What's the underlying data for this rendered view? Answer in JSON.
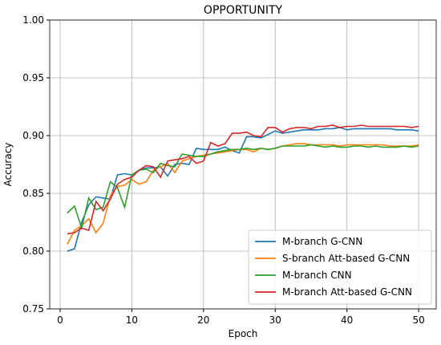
{
  "chart_data": {
    "type": "line",
    "title": "OPPORTUNITY",
    "x_label": "Epoch",
    "y_label": "Accuracy",
    "x": [
      1,
      2,
      3,
      4,
      5,
      6,
      7,
      8,
      9,
      10,
      11,
      12,
      13,
      14,
      15,
      16,
      17,
      18,
      19,
      20,
      21,
      22,
      23,
      24,
      25,
      26,
      27,
      28,
      29,
      30,
      31,
      32,
      33,
      34,
      35,
      36,
      37,
      38,
      39,
      40,
      41,
      42,
      43,
      44,
      45,
      46,
      47,
      48,
      49,
      50
    ],
    "series": [
      {
        "name": "M-branch G-CNN",
        "color": "#1f77b4",
        "values": [
          0.8,
          0.802,
          0.825,
          0.84,
          0.847,
          0.846,
          0.845,
          0.866,
          0.867,
          0.866,
          0.87,
          0.872,
          0.872,
          0.873,
          0.865,
          0.875,
          0.876,
          0.875,
          0.889,
          0.888,
          0.888,
          0.888,
          0.89,
          0.887,
          0.885,
          0.899,
          0.899,
          0.898,
          0.901,
          0.904,
          0.902,
          0.903,
          0.904,
          0.905,
          0.905,
          0.905,
          0.906,
          0.906,
          0.907,
          0.905,
          0.906,
          0.906,
          0.906,
          0.906,
          0.906,
          0.906,
          0.905,
          0.905,
          0.905,
          0.904
        ]
      },
      {
        "name": "S-branch Att-based G-CNN",
        "color": "#ff7f0e",
        "values": [
          0.806,
          0.818,
          0.822,
          0.828,
          0.816,
          0.824,
          0.848,
          0.856,
          0.857,
          0.862,
          0.858,
          0.86,
          0.87,
          0.873,
          0.876,
          0.868,
          0.878,
          0.88,
          0.882,
          0.883,
          0.884,
          0.885,
          0.886,
          0.887,
          0.888,
          0.888,
          0.886,
          0.889,
          0.888,
          0.889,
          0.891,
          0.892,
          0.893,
          0.893,
          0.892,
          0.892,
          0.892,
          0.892,
          0.891,
          0.892,
          0.892,
          0.892,
          0.892,
          0.892,
          0.892,
          0.891,
          0.891,
          0.891,
          0.891,
          0.892
        ]
      },
      {
        "name": "M-branch CNN",
        "color": "#2ca02c",
        "values": [
          0.833,
          0.839,
          0.82,
          0.846,
          0.836,
          0.838,
          0.86,
          0.855,
          0.838,
          0.866,
          0.87,
          0.871,
          0.868,
          0.876,
          0.874,
          0.873,
          0.884,
          0.883,
          0.882,
          0.882,
          0.884,
          0.886,
          0.887,
          0.888,
          0.888,
          0.889,
          0.888,
          0.889,
          0.888,
          0.889,
          0.891,
          0.891,
          0.891,
          0.891,
          0.892,
          0.891,
          0.89,
          0.891,
          0.89,
          0.89,
          0.891,
          0.891,
          0.89,
          0.891,
          0.89,
          0.89,
          0.89,
          0.891,
          0.89,
          0.891
        ]
      },
      {
        "name": "M-branch Att-based G-CNN",
        "color": "#d62728",
        "values": [
          0.815,
          0.816,
          0.82,
          0.818,
          0.843,
          0.835,
          0.845,
          0.858,
          0.862,
          0.864,
          0.87,
          0.874,
          0.873,
          0.864,
          0.878,
          0.879,
          0.88,
          0.882,
          0.876,
          0.878,
          0.894,
          0.891,
          0.893,
          0.902,
          0.902,
          0.903,
          0.9,
          0.899,
          0.907,
          0.907,
          0.903,
          0.906,
          0.907,
          0.907,
          0.906,
          0.908,
          0.908,
          0.909,
          0.907,
          0.908,
          0.908,
          0.909,
          0.908,
          0.908,
          0.908,
          0.908,
          0.908,
          0.908,
          0.907,
          0.908
        ]
      }
    ],
    "xlim": [
      -1.45,
      52.45
    ],
    "xticks": [
      0,
      10,
      20,
      30,
      40,
      50
    ],
    "ylim": [
      0.75,
      1.0
    ],
    "yticks": [
      {
        "value": 0.75,
        "label": "0.75"
      },
      {
        "value": 0.8,
        "label": "0.80"
      },
      {
        "value": 0.85,
        "label": "0.85"
      },
      {
        "value": 0.9,
        "label": "0.90"
      },
      {
        "value": 0.95,
        "label": "0.95"
      },
      {
        "value": 1.0,
        "label": "1.00"
      }
    ],
    "grid": true,
    "legend": "lower right"
  }
}
